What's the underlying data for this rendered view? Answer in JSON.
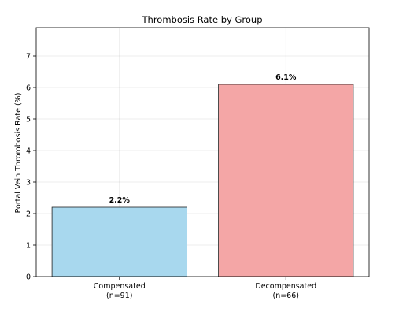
{
  "chart_data": {
    "type": "bar",
    "title": "Thrombosis Rate by Group",
    "xlabel": "",
    "ylabel": "Portal Vein Thrombosis Rate (%)",
    "ylim": [
      0,
      7.9
    ],
    "yticks": [
      0,
      1,
      2,
      3,
      4,
      5,
      6,
      7
    ],
    "grid": true,
    "categories": [
      "Compensated",
      "Decompensated"
    ],
    "category_sublabels": [
      "(n=91)",
      "(n=66)"
    ],
    "values": [
      2.2,
      6.1
    ],
    "value_labels": [
      "2.2%",
      "6.1%"
    ],
    "colors": [
      "#a8d8ee",
      "#f4a6a6"
    ]
  }
}
